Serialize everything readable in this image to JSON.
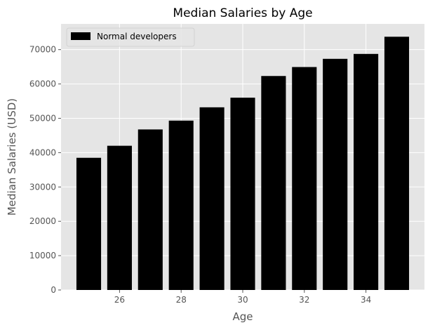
{
  "chart_data": {
    "type": "bar",
    "title": "Median Salaries by Age",
    "xlabel": "Age",
    "ylabel": "Median Salaries (USD)",
    "x": [
      25,
      26,
      27,
      28,
      29,
      30,
      31,
      32,
      33,
      34,
      35
    ],
    "series": [
      {
        "name": "Normal developers",
        "values": [
          38496,
          42000,
          46752,
          49320,
          53200,
          56000,
          62316,
          64928,
          67317,
          68748,
          73752
        ],
        "color": "#000000"
      }
    ],
    "xticks": [
      26,
      28,
      30,
      32,
      34
    ],
    "yticks": [
      0,
      10000,
      20000,
      30000,
      40000,
      50000,
      60000,
      70000
    ],
    "xlim": [
      24.1,
      35.9
    ],
    "ylim": [
      0,
      77500
    ],
    "grid": true,
    "legend_position": "top-left",
    "background_color": "#e5e5e5",
    "grid_color": "#ffffff"
  }
}
